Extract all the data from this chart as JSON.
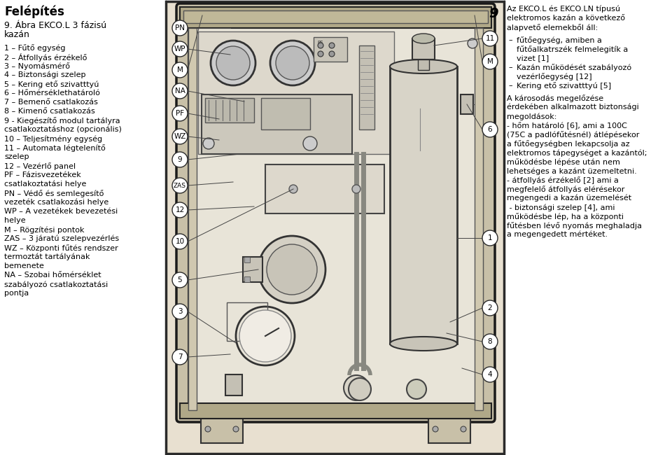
{
  "bg_color": "#ffffff",
  "title": "Felépítés",
  "subtitle_line1": "9. Ábra EKCO.L 3 fázisú",
  "subtitle_line2": "kazán",
  "left_items": [
    "1 – Fűtő egység",
    "2 – Átfollyás érzékelő",
    "3 – Nyomásmérő",
    "4 – Biztonsági szelep",
    "5 – Kering ető szivatttyú",
    "6 – Hőmérséklethatároló",
    "7 – Bemenő csatlakozás",
    "8 – Kimenő csatlakozás",
    "9 - Kiegészítő modul tartályra",
    "csatlakoztatáshoz (opcionális)",
    "10 – Teljesítmény egység",
    "11 – Automata légtelenítő",
    "szelep",
    "12 – Vezérlő panel",
    "PF – Fázisvezetékek",
    "csatlakoztatási helye",
    "PN – Védő és semlegesítő",
    "vezeték csatlakozási helye",
    "WP – A vezetékek bevezetési",
    "helye",
    "M – Rögzítési pontok",
    "ZAS – 3 járatú szelepvezérlés",
    "WZ – Központi fűtés rendszer",
    "termoztát tartályának",
    "bemenete",
    "NA – Szobai hőmérséklet",
    "szabályozó csatlakoztatási",
    "pontja"
  ],
  "right_title_lines": [
    "Az EKCO.L és EKCO.LN típusú",
    "elektromos kazán a következő",
    "alapvető elemekből áll:"
  ],
  "right_bullet_lines": [
    [
      "-",
      "fűtőegység, amiben a"
    ],
    [
      "",
      "fűtőalkatrszék felmelegitík a"
    ],
    [
      "",
      "vizet [1]"
    ],
    [
      "-",
      "Kazán működését szabályozó"
    ],
    [
      "",
      "vezérlőegység [12]"
    ],
    [
      "-",
      "Kering ető szivatttyú [5]"
    ]
  ],
  "right_body_lines": [
    "A károsodás megelőzése",
    "érdekében alkalmazott biztonsági",
    "megoldások:",
    "- hőm határoló [6], ami a 100C",
    "(75C a padlófűtésnél) átlépésekor",
    "a fűtőegységben lekapcsolja az",
    "elektromos tápegységet a kazántól;",
    "működésbe lépése után nem",
    "lehetséges a kazánt üzemeltetni.",
    "- átfollyás érzékelő [2] ami a",
    "megfelelő átfollyás elérésekor",
    "megengedi a kazán üzemelését",
    " - biztonsági szelep [4], ami",
    "működésbe lép, ha a központi",
    "fűtésben lévő nyomás meghaladja",
    "a megengedett mértéket."
  ],
  "diagram_left_labels": [
    "PN",
    "WP",
    "M",
    "NA",
    "PF",
    "WZ",
    "9",
    "ZAS",
    "12",
    "10",
    "5",
    "3",
    "7"
  ],
  "diagram_right_labels": [
    "11",
    "M",
    "6",
    "1",
    "2",
    "8",
    "4"
  ],
  "figure_number": "9",
  "outer_bg": "#e8e0d0",
  "cabinet_bg": "#f0ece4",
  "inner_bg": "#ede8de",
  "border_color": "#2a2a2a",
  "callout_fill": "#ffffff",
  "callout_border": "#2a2a2a"
}
